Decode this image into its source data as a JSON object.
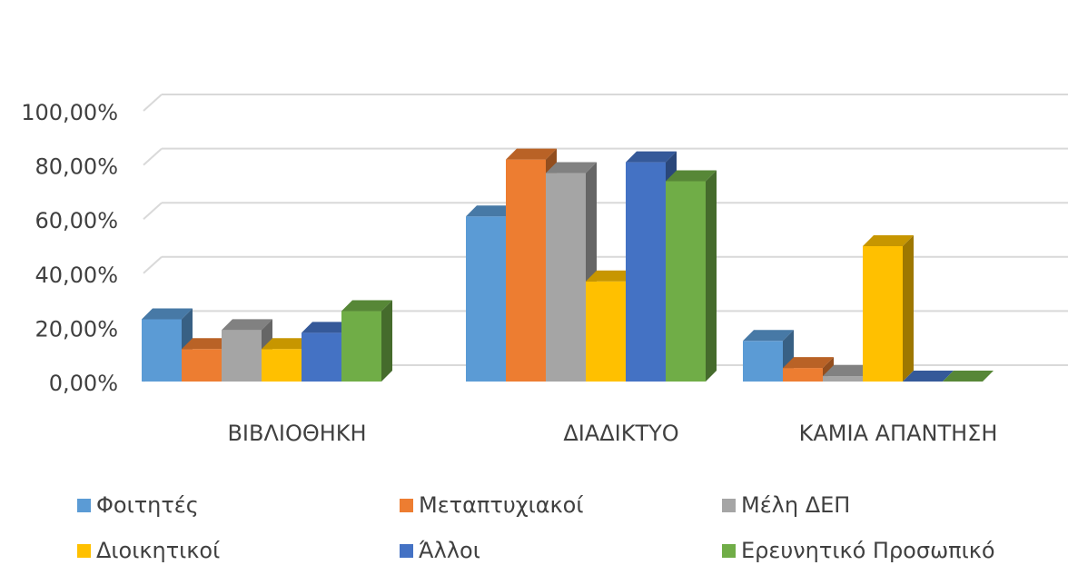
{
  "chart_data": {
    "type": "bar",
    "three_d": true,
    "categories": [
      "ΒΙΒΛΙΟΘΗΚΗ",
      "ΔΙΑΔΙΚΤΥΟ",
      "ΚΑΜΙΑ ΑΠΑΝΤΗΣΗ"
    ],
    "series": [
      {
        "name": "Φοιτητές",
        "color": "#5B9BD5",
        "values": [
          23,
          61,
          15
        ]
      },
      {
        "name": "Μεταπτυχιακοί",
        "color": "#ED7D31",
        "values": [
          12,
          82,
          5
        ]
      },
      {
        "name": "Μέλη ΔΕΠ",
        "color": "#A5A5A5",
        "values": [
          19,
          77,
          2
        ]
      },
      {
        "name": "Διοικητικοί",
        "color": "#FFC000",
        "values": [
          12,
          37,
          50
        ]
      },
      {
        "name": "Άλλοι",
        "color": "#4472C4",
        "values": [
          18,
          81,
          0
        ]
      },
      {
        "name": "Ερευνητικό Προσωπικό",
        "color": "#70AD47",
        "values": [
          26,
          74,
          0
        ]
      }
    ],
    "y_ticks": [
      "0,00%",
      "20,00%",
      "40,00%",
      "60,00%",
      "80,00%",
      "100,00%"
    ],
    "ylim": [
      0,
      100
    ],
    "grid": true,
    "legend_position": "bottom"
  }
}
